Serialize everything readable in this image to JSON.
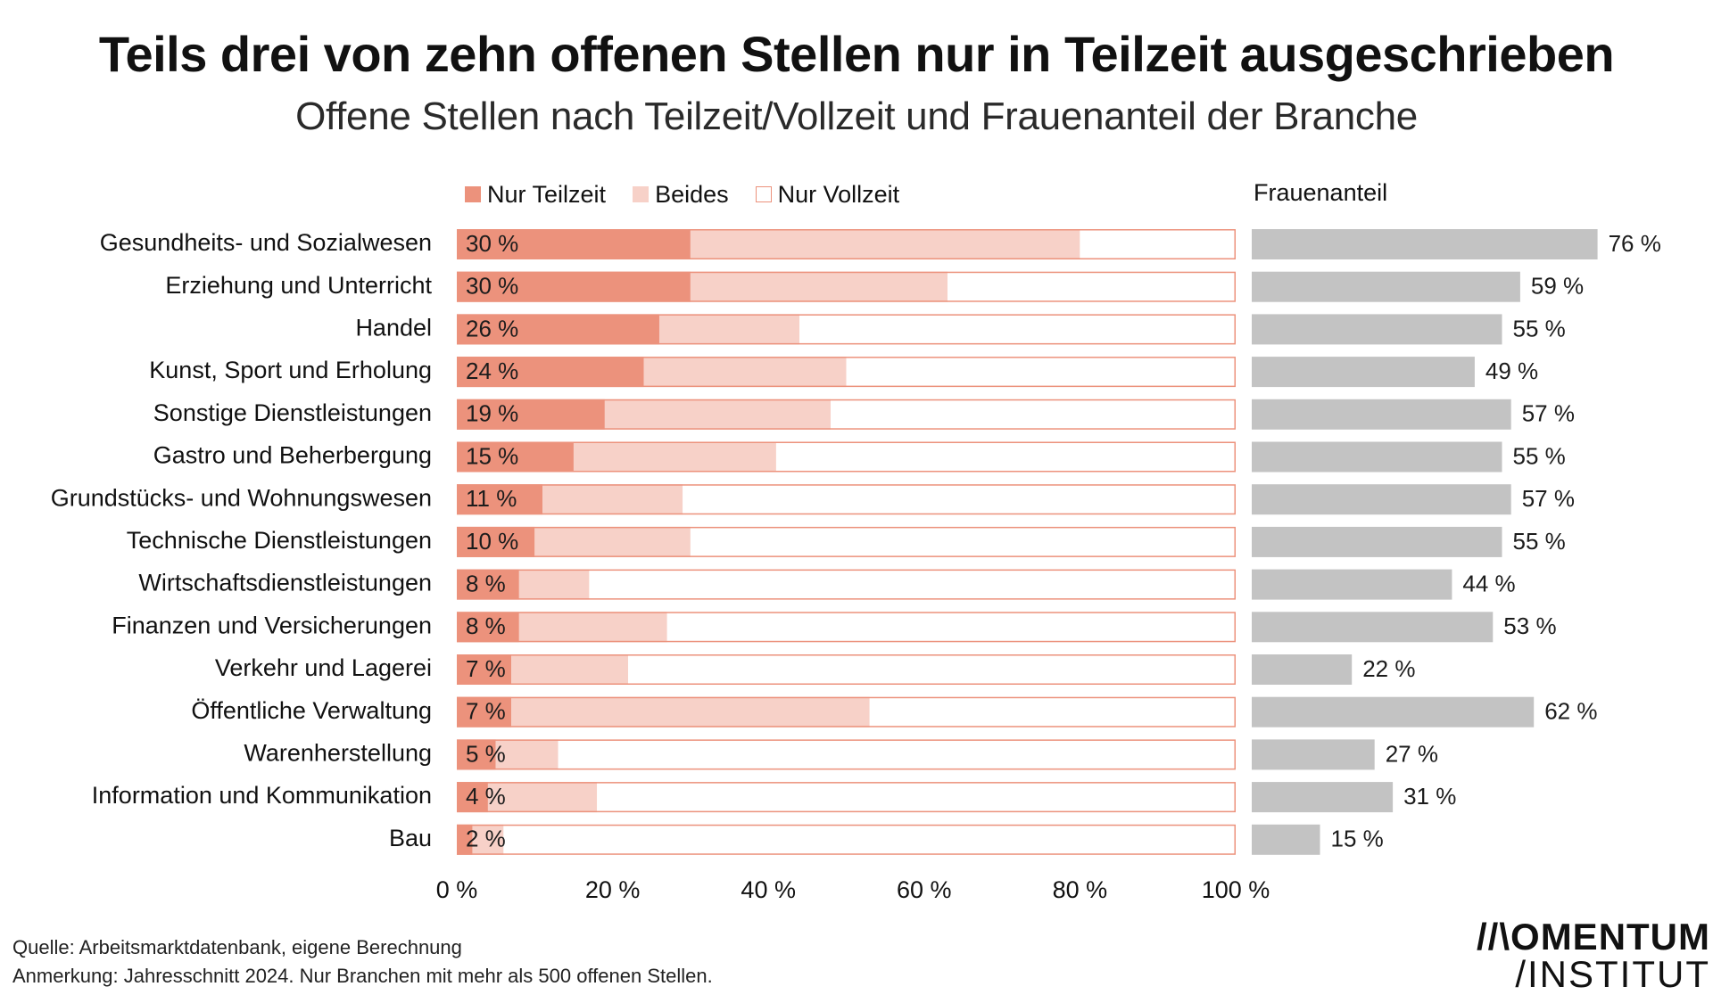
{
  "title": "Teils drei von zehn offenen Stellen nur in Teilzeit ausgeschrieben",
  "subtitle": "Offene Stellen nach Teilzeit/Vollzeit und Frauenanteil der Branche",
  "legend": {
    "teilzeit": "Nur Teilzeit",
    "beides": "Beides",
    "vollzeit": "Nur Vollzeit"
  },
  "female_share_title": "Frauenanteil",
  "colors": {
    "teilzeit": "#ec927c",
    "beides": "#f7d1c8",
    "vollzeit": "#ffffff",
    "border": "#ec927c",
    "female_bar": "#c3c3c3"
  },
  "chart_data": {
    "type": "bar",
    "orientation": "horizontal",
    "stacked": true,
    "title": "Teils drei von zehn offenen Stellen nur in Teilzeit ausgeschrieben",
    "xlim": [
      0,
      100
    ],
    "x_ticks": [
      "0 %",
      "20 %",
      "40 %",
      "60 %",
      "80 %",
      "100 %"
    ],
    "categories": [
      "Gesundheits- und Sozialwesen",
      "Erziehung und Unterricht",
      "Handel",
      "Kunst, Sport und Erholung",
      "Sonstige Dienstleistungen",
      "Gastro und Beherbergung",
      "Grundstücks- und Wohnungswesen",
      "Technische Dienstleistungen",
      "Wirtschaftsdienstleistungen",
      "Finanzen und Versicherungen",
      "Verkehr und Lagerei",
      "Öffentliche Verwaltung",
      "Warenherstellung",
      "Information und Kommunikation",
      "Bau"
    ],
    "series": [
      {
        "name": "Nur Teilzeit",
        "values": [
          30,
          30,
          26,
          24,
          19,
          15,
          11,
          10,
          8,
          8,
          7,
          7,
          5,
          4,
          2
        ],
        "labels": [
          "30 %",
          "30 %",
          "26 %",
          "24 %",
          "19 %",
          "15 %",
          "11 %",
          "10 %",
          "8 %",
          "8 %",
          "7 %",
          "7 %",
          "5 %",
          "4 %",
          "2 %"
        ]
      },
      {
        "name": "Beides",
        "values": [
          50,
          33,
          18,
          26,
          29,
          26,
          18,
          20,
          9,
          19,
          15,
          46,
          8,
          14,
          4
        ]
      },
      {
        "name": "Nur Vollzeit",
        "values": [
          20,
          37,
          56,
          50,
          52,
          59,
          71,
          70,
          83,
          73,
          78,
          47,
          87,
          82,
          94
        ]
      }
    ],
    "female_share": {
      "name": "Frauenanteil",
      "values": [
        76,
        59,
        55,
        49,
        57,
        55,
        57,
        55,
        44,
        53,
        22,
        62,
        27,
        31,
        15
      ],
      "labels": [
        "76 %",
        "59 %",
        "55 %",
        "49 %",
        "57 %",
        "55 %",
        "57 %",
        "55 %",
        "44 %",
        "53 %",
        "22 %",
        "62 %",
        "27 %",
        "31 %",
        "15 %"
      ]
    }
  },
  "footer": {
    "source": "Quelle: Arbeitsmarktdatenbank, eigene Berechnung",
    "note": "Anmerkung: Jahresschnitt 2024. Nur Branchen mit mehr als 500 offenen Stellen.",
    "brand_line1": "//\\OMENTUM",
    "brand_line2": "/INSTITUT"
  }
}
